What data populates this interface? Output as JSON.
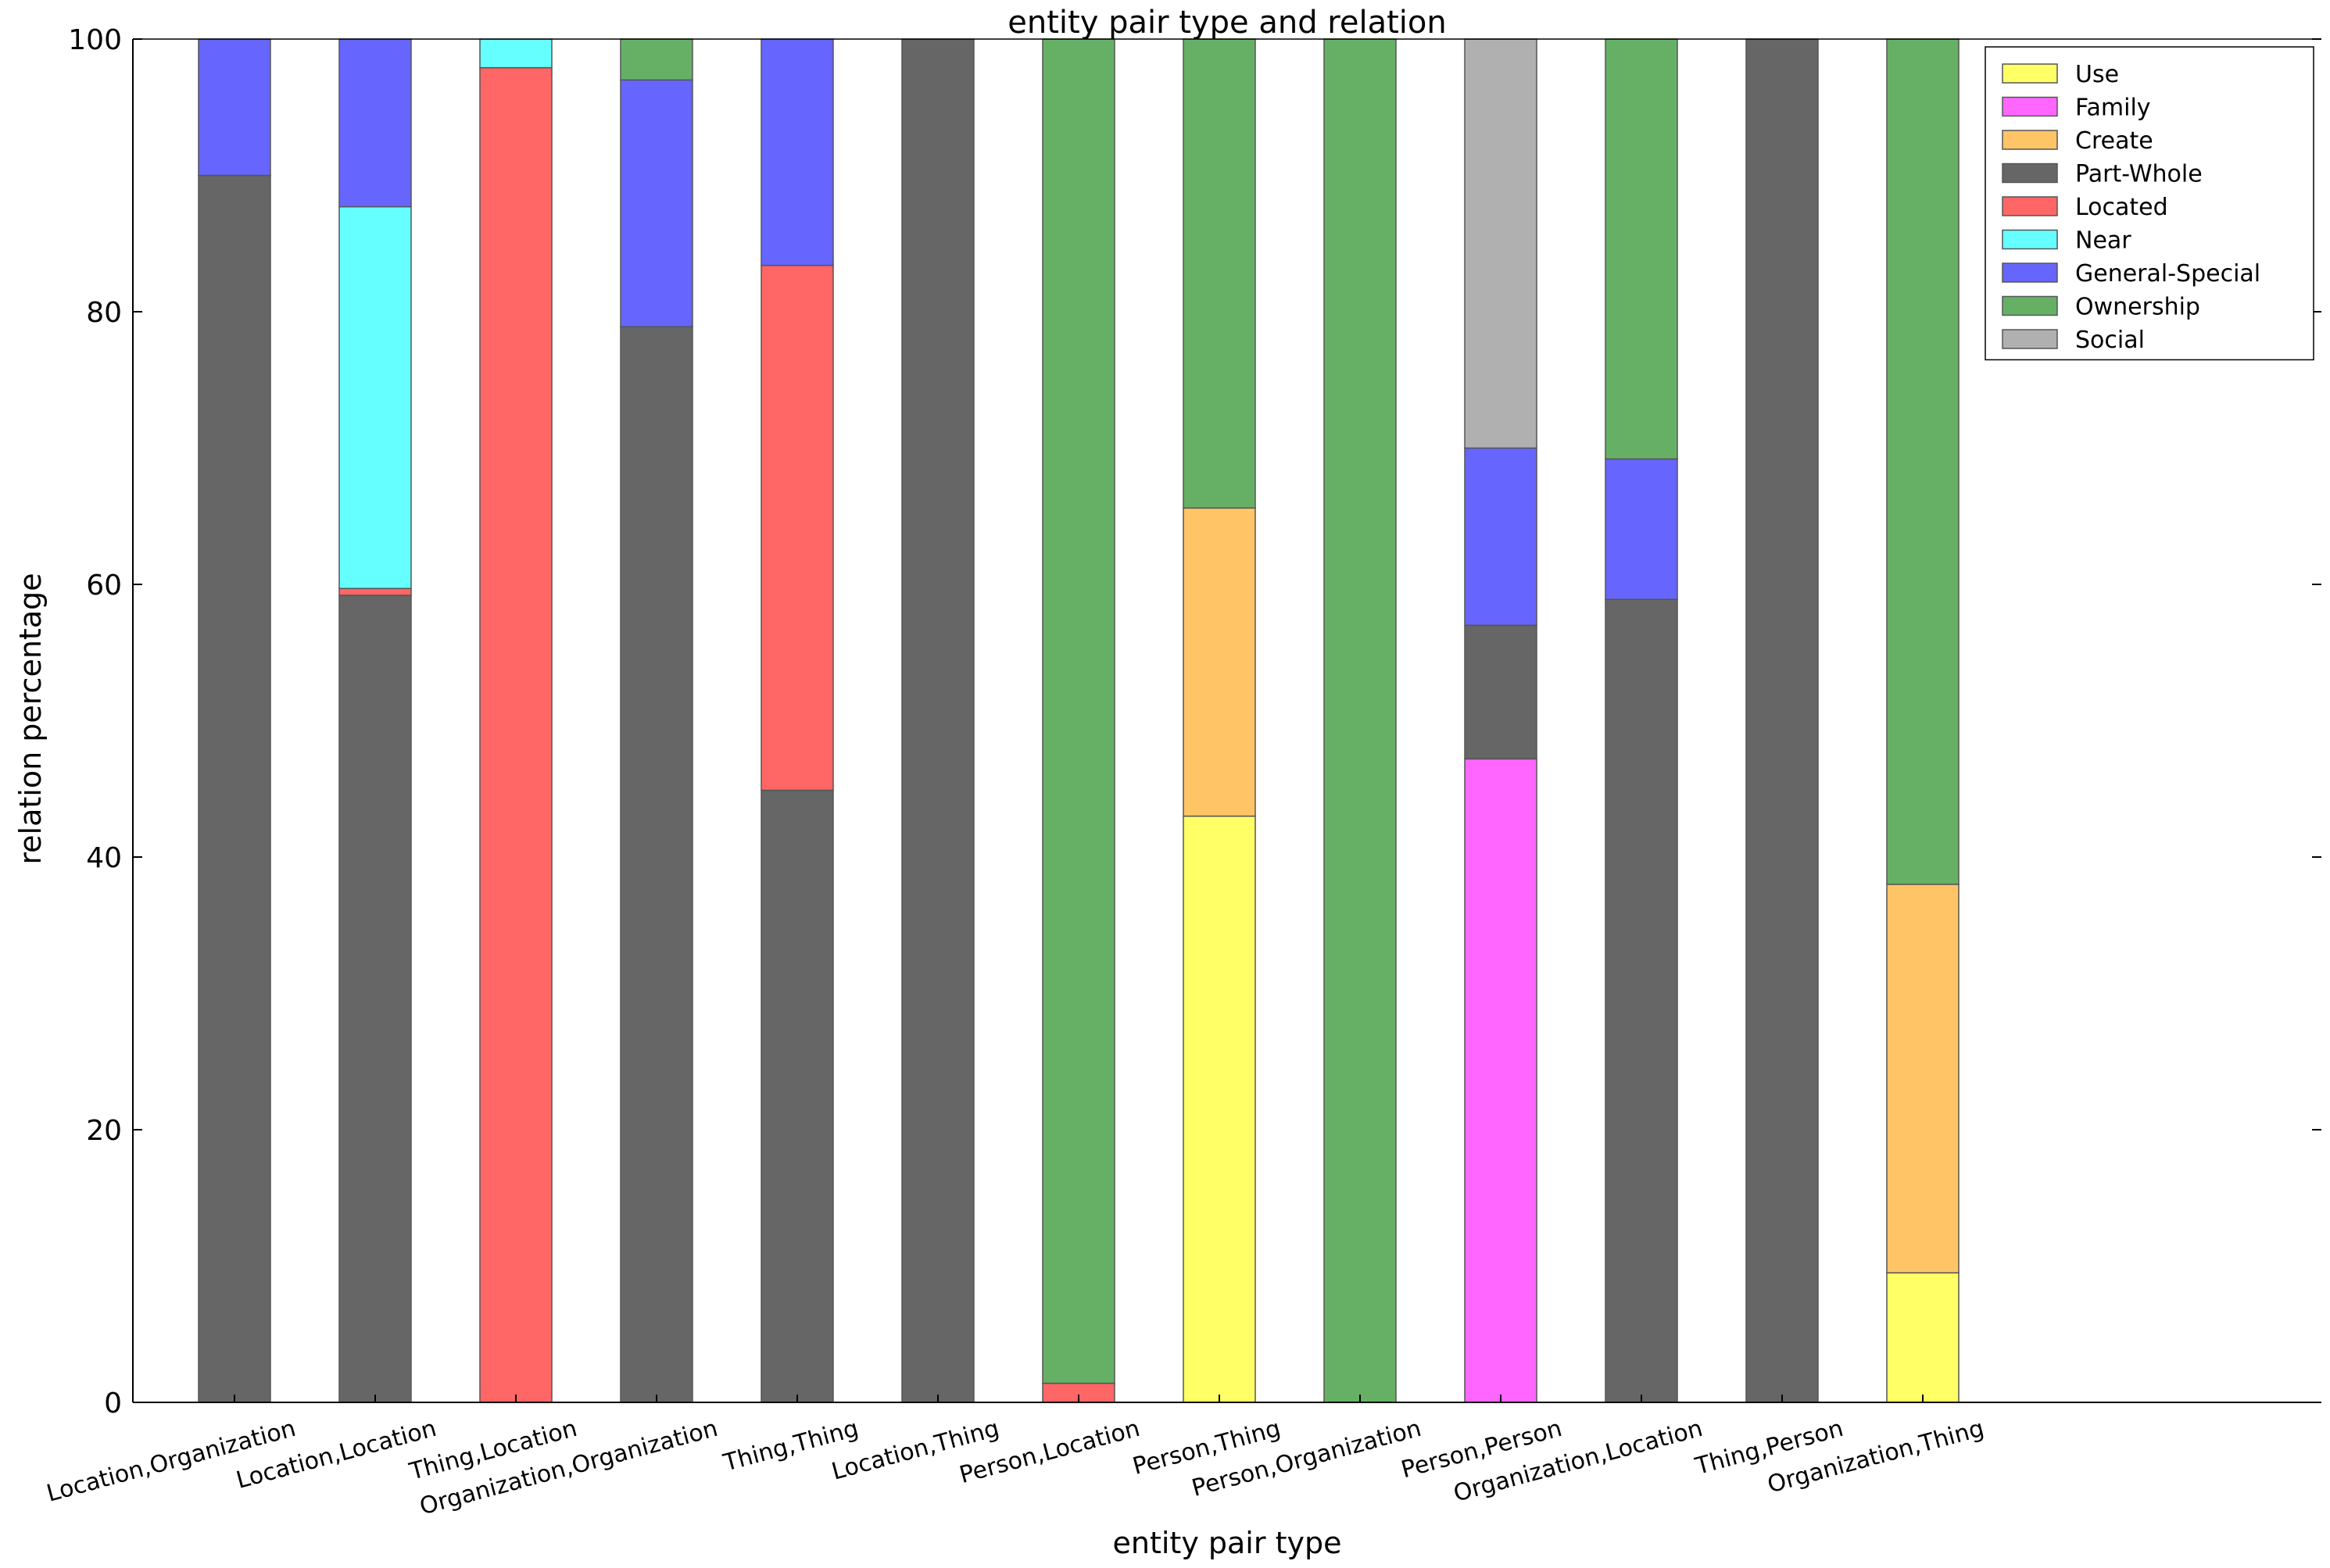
{
  "chart_data": {
    "type": "bar",
    "stacked": true,
    "title": "entity pair type and relation",
    "xlabel": "entity pair type",
    "ylabel": "relation percentage",
    "ylim": [
      0,
      100
    ],
    "yticks": [
      0,
      20,
      40,
      60,
      80,
      100
    ],
    "grid": false,
    "legend_position": "top-right",
    "categories": [
      "Location,Organization",
      "Location,Location",
      "Thing,Location",
      "Organization,Organization",
      "Thing,Thing",
      "Location,Thing",
      "Person,Location",
      "Person,Thing",
      "Person,Organization",
      "Person,Person",
      "Organization,Location",
      "Thing,Person",
      "Organization,Thing"
    ],
    "series": [
      {
        "name": "Use",
        "color": "#ffff66",
        "values": [
          0,
          0,
          0,
          0,
          0,
          0,
          0,
          43,
          0,
          0,
          0,
          0,
          9.5
        ]
      },
      {
        "name": "Family",
        "color": "#ff66ff",
        "values": [
          0,
          0,
          0,
          0,
          0,
          0,
          0,
          0,
          0,
          47.2,
          0,
          0,
          0
        ]
      },
      {
        "name": "Create",
        "color": "#ffc466",
        "values": [
          0,
          0,
          0,
          0,
          0,
          0,
          0,
          22.6,
          0,
          0,
          0,
          0,
          28.5
        ]
      },
      {
        "name": "Part-Whole",
        "color": "#666666",
        "values": [
          90,
          59.2,
          0,
          78.9,
          44.9,
          100,
          0,
          0,
          0,
          9.8,
          58.9,
          100,
          0
        ]
      },
      {
        "name": "Located",
        "color": "#ff6666",
        "values": [
          0,
          0.5,
          97.9,
          0,
          38.5,
          0,
          1.4,
          0,
          0,
          0,
          0,
          0,
          0
        ]
      },
      {
        "name": "Near",
        "color": "#66ffff",
        "values": [
          0,
          28,
          2.1,
          0,
          0,
          0,
          0,
          0,
          0,
          0,
          0,
          0,
          0
        ]
      },
      {
        "name": "General-Special",
        "color": "#6666ff",
        "values": [
          10,
          12.3,
          0,
          18.1,
          16.6,
          0,
          0,
          0,
          0,
          13,
          10.3,
          0,
          0
        ]
      },
      {
        "name": "Ownership",
        "color": "#66b066",
        "values": [
          0,
          0,
          0,
          3,
          0,
          0,
          98.6,
          34.4,
          100,
          0,
          30.8,
          0,
          62
        ]
      },
      {
        "name": "Social",
        "color": "#b0b0b0",
        "values": [
          0,
          0,
          0,
          0,
          0,
          0,
          0,
          0,
          0,
          30,
          0,
          0,
          0
        ]
      }
    ]
  }
}
